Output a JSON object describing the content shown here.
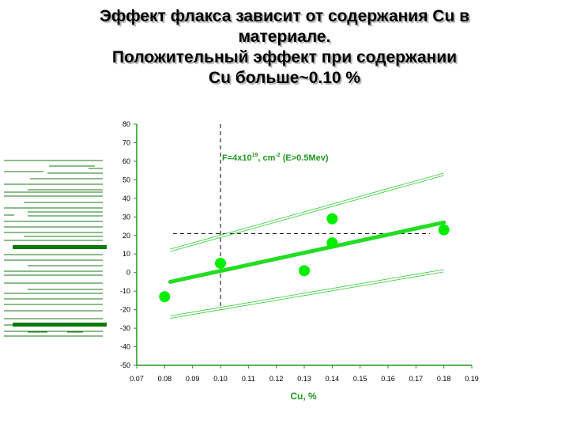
{
  "slide": {
    "title_lines": [
      "Эффект флакса зависит от содержания Cu в",
      "материале.",
      "Положительный эффект при содержании",
      "Cu больше~0.10 %"
    ]
  },
  "chart_data": {
    "type": "scatter",
    "xlabel": "Cu, %",
    "ylabel": "",
    "xlim": [
      0.07,
      0.19
    ],
    "ylim": [
      -50,
      80
    ],
    "x_ticks": [
      "0.07",
      "0.08",
      "0.09",
      "0.10",
      "0.11",
      "0.12",
      "0.13",
      "0.14",
      "0.15",
      "0.16",
      "0.17",
      "0.18",
      "0.19"
    ],
    "y_ticks": [
      "80",
      "70",
      "60",
      "50",
      "40",
      "30",
      "20",
      "10",
      "0",
      "-10",
      "-20",
      "-30",
      "-40",
      "-50"
    ],
    "annotation": {
      "base": "F=4x10",
      "exp1": "19",
      "mid": ", cm",
      "exp2": "-2",
      "tail": " (E>0.5Mev)"
    },
    "points": [
      {
        "x": 0.08,
        "y": -13
      },
      {
        "x": 0.1,
        "y": 5
      },
      {
        "x": 0.13,
        "y": 1
      },
      {
        "x": 0.14,
        "y": 29
      },
      {
        "x": 0.14,
        "y": 16
      },
      {
        "x": 0.18,
        "y": 23
      }
    ],
    "fit_line": {
      "x": [
        0.082,
        0.18
      ],
      "y": [
        -5,
        27
      ]
    },
    "upper_band": {
      "x": [
        0.082,
        0.18
      ],
      "y": [
        12,
        53
      ]
    },
    "lower_band": {
      "x": [
        0.082,
        0.18
      ],
      "y": [
        -24,
        1
      ]
    },
    "reference_lines": {
      "vertical_x": 0.1,
      "horizontal_y": 21
    },
    "grid": false,
    "colors": {
      "points": "#00ee00",
      "fit": "#22dd22",
      "band": "#33cc33",
      "axis": "#1e9a1e",
      "reference": "#000000"
    }
  },
  "decoration": {
    "line_color": "#1a7a1a",
    "thick_color": "#0a7a0a"
  }
}
